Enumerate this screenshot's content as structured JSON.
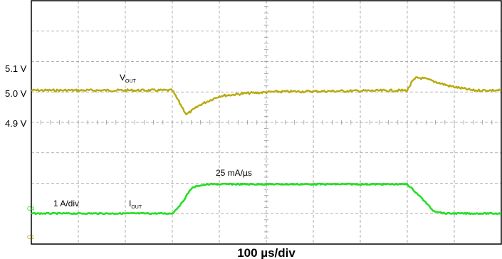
{
  "chart_data": {
    "type": "line",
    "timebase": "100 µs/div",
    "divisions": 10,
    "colors": {
      "vout": "#b8a90f",
      "iout": "#22e022",
      "grid": "#9a9a9a",
      "frame": "#000000"
    },
    "vout": {
      "name_main": "V",
      "name_sub": "OUT",
      "ticks": [
        "5.1 V",
        "5.0 V",
        "4.9 V"
      ],
      "tick_values": [
        5.1,
        5.0,
        4.9
      ],
      "x_div": [
        0,
        3.0,
        3.3,
        3.6,
        4.0,
        4.6,
        5.2,
        8.0,
        8.1,
        8.2,
        8.4,
        8.9,
        9.4,
        10
      ],
      "y": [
        5.01,
        5.01,
        4.925,
        4.96,
        4.99,
        5.0,
        5.005,
        5.01,
        5.04,
        5.055,
        5.05,
        5.025,
        5.01,
        5.01
      ]
    },
    "iout": {
      "name_main": "I",
      "name_sub": "OUT",
      "scale_label": "1 A/div",
      "slew_label": "25 mA/µs",
      "x_div": [
        0,
        3.0,
        3.2,
        3.4,
        3.55,
        3.8,
        8.0,
        8.3,
        8.55,
        8.8,
        10
      ],
      "y_div": [
        0,
        0,
        0.55,
        1.35,
        1.5,
        1.58,
        1.58,
        0.85,
        0.15,
        0,
        0
      ]
    },
    "channel_markers": [
      "C4",
      "C1"
    ]
  }
}
